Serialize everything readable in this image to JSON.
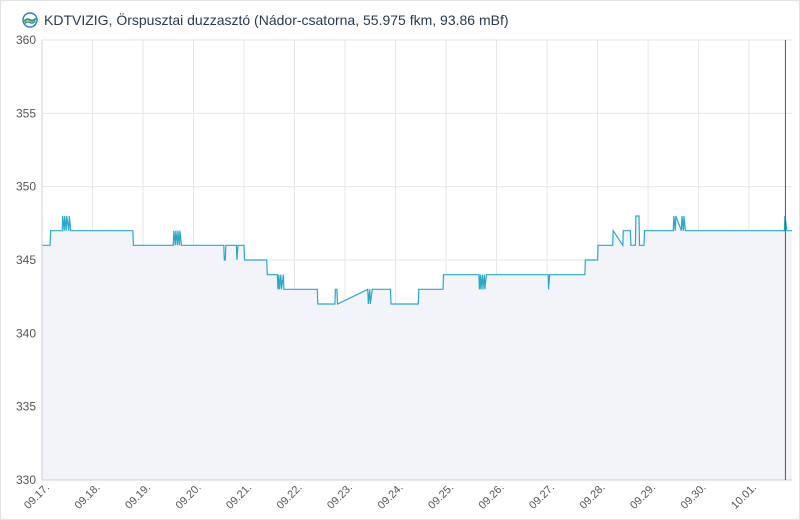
{
  "header": {
    "title": "KDTVIZIG, Örspusztai duzzasztó (Nádor-csatorna, 55.975 fkm, 93.86 mBf)",
    "logo_icon": "kdtvizig-logo-icon"
  },
  "colors": {
    "line": "#29a9c9",
    "area": "#f3f4fa",
    "grid": "#e6e6e6",
    "cursor": "#555555"
  },
  "chart_data": {
    "type": "line",
    "title": "KDTVIZIG, Örspusztai duzzasztó (Nádor-csatorna, 55.975 fkm, 93.86 mBf)",
    "xlabel": "",
    "ylabel": "",
    "ylim": [
      330,
      360
    ],
    "xlim": [
      0,
      14.85
    ],
    "yticks": [
      330,
      335,
      340,
      345,
      350,
      355,
      360
    ],
    "xticks": [
      "09.17.",
      "09.18.",
      "09.19.",
      "09.20.",
      "09.21.",
      "09.22.",
      "09.23.",
      "09.24.",
      "09.25.",
      "09.26.",
      "09.27.",
      "09.28.",
      "09.29.",
      "09.30.",
      "10.01."
    ],
    "grid": true,
    "fill_below": true,
    "series": [
      {
        "x": [
          0,
          0.16,
          0.17,
          0.18,
          0.4,
          0.41,
          0.44,
          0.45,
          0.48,
          0.49,
          0.53,
          0.54,
          0.57,
          0.58,
          1.8,
          1.81,
          2.6,
          2.61,
          2.64,
          2.65,
          2.68,
          2.69,
          2.72,
          2.73,
          2.76,
          2.77,
          3.6,
          3.61,
          3.63,
          3.64,
          3.85,
          3.86,
          3.88,
          4.0,
          4.01,
          4.45,
          4.46,
          4.66,
          4.67,
          4.69,
          4.7,
          4.73,
          4.74,
          4.78,
          4.79,
          5.0,
          5.01,
          5.45,
          5.46,
          5.8,
          5.81,
          5.84,
          5.85,
          6.45,
          6.46,
          6.49,
          6.5,
          6.54,
          6.55,
          6.9,
          6.91,
          7.45,
          7.46,
          7.94,
          7.95,
          8.65,
          8.66,
          8.68,
          8.69,
          8.72,
          8.73,
          8.76,
          8.77,
          8.8,
          8.81,
          10.02,
          10.03,
          10.05,
          10.75,
          10.76,
          11.0,
          11.01,
          11.3,
          11.31,
          11.5,
          11.51,
          11.65,
          11.66,
          11.75,
          11.76,
          11.82,
          11.83,
          11.92,
          11.93,
          12.5,
          12.51,
          12.54,
          12.55,
          12.66,
          12.67,
          12.7,
          12.71,
          12.74,
          12.75,
          14.7,
          14.71,
          14.75,
          14.76,
          14.85
        ],
        "y": [
          346,
          346,
          347,
          347,
          347,
          348,
          347,
          348,
          347,
          348,
          347,
          348,
          347,
          347,
          347,
          346,
          346,
          347,
          346,
          347,
          346,
          347,
          346,
          347,
          346,
          346,
          346,
          345,
          345,
          346,
          346,
          345,
          346,
          346,
          345,
          345,
          344,
          344,
          343,
          344,
          343,
          344,
          343,
          344,
          343,
          343,
          343,
          343,
          342,
          342,
          343,
          343,
          342,
          343,
          342,
          343,
          342,
          343,
          343,
          343,
          342,
          342,
          343,
          343,
          344,
          344,
          343,
          344,
          343,
          344,
          343,
          344,
          343,
          344,
          344,
          344,
          343,
          344,
          344,
          345,
          345,
          346,
          346,
          347,
          346,
          347,
          347,
          346,
          346,
          348,
          348,
          346,
          346,
          347,
          347,
          348,
          347,
          348,
          347,
          348,
          347,
          348,
          347,
          347,
          347,
          348,
          347,
          347,
          347
        ]
      }
    ]
  }
}
